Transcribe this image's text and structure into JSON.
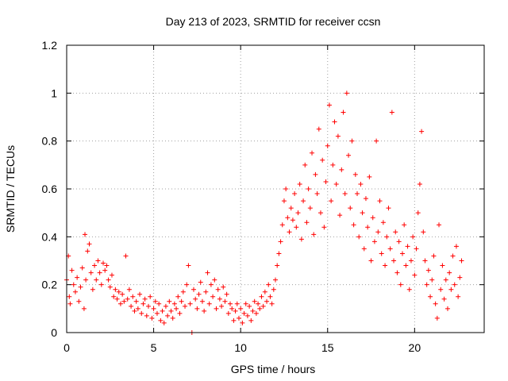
{
  "chart_data": {
    "type": "scatter",
    "title": "Day 213 of 2023, SRMTID for receiver ccsn",
    "xlabel": "GPS time / hours",
    "ylabel": "SRMTID / TECUs",
    "xlim": [
      0,
      24
    ],
    "ylim": [
      0,
      1.2
    ],
    "x_ticks": [
      0,
      5,
      10,
      15,
      20
    ],
    "y_ticks": [
      0,
      0.2,
      0.4,
      0.6,
      0.8,
      1,
      1.2
    ],
    "x_tick_labels": [
      "0",
      "5",
      "10",
      "15",
      "20"
    ],
    "y_tick_labels": [
      "0",
      "0.2",
      "0.4",
      "0.6",
      "0.8",
      "1",
      "1.2"
    ],
    "grid": true,
    "marker": "+",
    "series": [
      {
        "name": "SRMTID",
        "color": "#ff0000",
        "points": [
          [
            0.0,
            0.22
          ],
          [
            0.1,
            0.32
          ],
          [
            0.15,
            0.15
          ],
          [
            0.2,
            0.12
          ],
          [
            0.3,
            0.26
          ],
          [
            0.4,
            0.2
          ],
          [
            0.5,
            0.17
          ],
          [
            0.6,
            0.23
          ],
          [
            0.7,
            0.13
          ],
          [
            0.8,
            0.19
          ],
          [
            0.9,
            0.27
          ],
          [
            1.0,
            0.1
          ],
          [
            1.05,
            0.41
          ],
          [
            1.1,
            0.22
          ],
          [
            1.2,
            0.34
          ],
          [
            1.3,
            0.37
          ],
          [
            1.4,
            0.25
          ],
          [
            1.5,
            0.18
          ],
          [
            1.6,
            0.28
          ],
          [
            1.7,
            0.22
          ],
          [
            1.8,
            0.3
          ],
          [
            1.9,
            0.25
          ],
          [
            2.0,
            0.2
          ],
          [
            2.1,
            0.29
          ],
          [
            2.2,
            0.26
          ],
          [
            2.3,
            0.28
          ],
          [
            2.4,
            0.22
          ],
          [
            2.5,
            0.19
          ],
          [
            2.6,
            0.24
          ],
          [
            2.7,
            0.15
          ],
          [
            2.8,
            0.18
          ],
          [
            2.9,
            0.14
          ],
          [
            3.0,
            0.17
          ],
          [
            3.1,
            0.12
          ],
          [
            3.2,
            0.16
          ],
          [
            3.3,
            0.13
          ],
          [
            3.4,
            0.32
          ],
          [
            3.5,
            0.14
          ],
          [
            3.6,
            0.18
          ],
          [
            3.7,
            0.11
          ],
          [
            3.8,
            0.15
          ],
          [
            3.9,
            0.09
          ],
          [
            4.0,
            0.13
          ],
          [
            4.1,
            0.1
          ],
          [
            4.2,
            0.16
          ],
          [
            4.3,
            0.08
          ],
          [
            4.4,
            0.12
          ],
          [
            4.5,
            0.14
          ],
          [
            4.6,
            0.07
          ],
          [
            4.7,
            0.11
          ],
          [
            4.8,
            0.15
          ],
          [
            4.9,
            0.06
          ],
          [
            5.0,
            0.1
          ],
          [
            5.1,
            0.13
          ],
          [
            5.2,
            0.08
          ],
          [
            5.3,
            0.12
          ],
          [
            5.4,
            0.05
          ],
          [
            5.5,
            0.09
          ],
          [
            5.6,
            0.04
          ],
          [
            5.7,
            0.11
          ],
          [
            5.8,
            0.07
          ],
          [
            5.9,
            0.13
          ],
          [
            6.0,
            0.09
          ],
          [
            6.1,
            0.06
          ],
          [
            6.2,
            0.12
          ],
          [
            6.3,
            0.1
          ],
          [
            6.4,
            0.15
          ],
          [
            6.5,
            0.08
          ],
          [
            6.6,
            0.13
          ],
          [
            6.7,
            0.17
          ],
          [
            6.8,
            0.11
          ],
          [
            6.9,
            0.2
          ],
          [
            7.0,
            0.28
          ],
          [
            7.1,
            0.12
          ],
          [
            7.2,
            0.0
          ],
          [
            7.3,
            0.18
          ],
          [
            7.4,
            0.14
          ],
          [
            7.5,
            0.1
          ],
          [
            7.6,
            0.16
          ],
          [
            7.7,
            0.21
          ],
          [
            7.8,
            0.13
          ],
          [
            7.9,
            0.09
          ],
          [
            8.0,
            0.17
          ],
          [
            8.1,
            0.25
          ],
          [
            8.2,
            0.12
          ],
          [
            8.3,
            0.2
          ],
          [
            8.4,
            0.15
          ],
          [
            8.5,
            0.22
          ],
          [
            8.6,
            0.1
          ],
          [
            8.7,
            0.18
          ],
          [
            8.8,
            0.14
          ],
          [
            8.9,
            0.11
          ],
          [
            9.0,
            0.19
          ],
          [
            9.1,
            0.13
          ],
          [
            9.2,
            0.16
          ],
          [
            9.3,
            0.08
          ],
          [
            9.4,
            0.12
          ],
          [
            9.5,
            0.1
          ],
          [
            9.6,
            0.05
          ],
          [
            9.7,
            0.09
          ],
          [
            9.8,
            0.12
          ],
          [
            9.9,
            0.06
          ],
          [
            10.0,
            0.1
          ],
          [
            10.1,
            0.04
          ],
          [
            10.2,
            0.08
          ],
          [
            10.3,
            0.12
          ],
          [
            10.4,
            0.07
          ],
          [
            10.5,
            0.11
          ],
          [
            10.6,
            0.05
          ],
          [
            10.7,
            0.09
          ],
          [
            10.8,
            0.13
          ],
          [
            10.9,
            0.08
          ],
          [
            11.0,
            0.12
          ],
          [
            11.1,
            0.1
          ],
          [
            11.2,
            0.15
          ],
          [
            11.3,
            0.11
          ],
          [
            11.4,
            0.17
          ],
          [
            11.5,
            0.13
          ],
          [
            11.6,
            0.2
          ],
          [
            11.7,
            0.15
          ],
          [
            11.8,
            0.12
          ],
          [
            11.9,
            0.18
          ],
          [
            12.0,
            0.22
          ],
          [
            12.1,
            0.28
          ],
          [
            12.2,
            0.33
          ],
          [
            12.3,
            0.38
          ],
          [
            12.4,
            0.45
          ],
          [
            12.5,
            0.55
          ],
          [
            12.6,
            0.6
          ],
          [
            12.7,
            0.48
          ],
          [
            12.8,
            0.42
          ],
          [
            12.9,
            0.52
          ],
          [
            13.0,
            0.47
          ],
          [
            13.1,
            0.58
          ],
          [
            13.2,
            0.44
          ],
          [
            13.3,
            0.5
          ],
          [
            13.4,
            0.62
          ],
          [
            13.5,
            0.39
          ],
          [
            13.6,
            0.55
          ],
          [
            13.7,
            0.7
          ],
          [
            13.8,
            0.46
          ],
          [
            13.9,
            0.6
          ],
          [
            14.0,
            0.52
          ],
          [
            14.1,
            0.75
          ],
          [
            14.2,
            0.41
          ],
          [
            14.3,
            0.66
          ],
          [
            14.4,
            0.58
          ],
          [
            14.5,
            0.85
          ],
          [
            14.6,
            0.5
          ],
          [
            14.7,
            0.72
          ],
          [
            14.8,
            0.44
          ],
          [
            14.9,
            0.63
          ],
          [
            15.0,
            0.78
          ],
          [
            15.1,
            0.95
          ],
          [
            15.2,
            0.55
          ],
          [
            15.3,
            0.7
          ],
          [
            15.4,
            0.88
          ],
          [
            15.5,
            0.62
          ],
          [
            15.6,
            0.82
          ],
          [
            15.7,
            0.49
          ],
          [
            15.8,
            0.68
          ],
          [
            15.9,
            0.92
          ],
          [
            16.0,
            0.58
          ],
          [
            16.1,
            1.0
          ],
          [
            16.2,
            0.74
          ],
          [
            16.3,
            0.52
          ],
          [
            16.4,
            0.8
          ],
          [
            16.5,
            0.45
          ],
          [
            16.6,
            0.66
          ],
          [
            16.7,
            0.58
          ],
          [
            16.8,
            0.4
          ],
          [
            16.9,
            0.62
          ],
          [
            17.0,
            0.5
          ],
          [
            17.1,
            0.35
          ],
          [
            17.2,
            0.56
          ],
          [
            17.3,
            0.44
          ],
          [
            17.4,
            0.65
          ],
          [
            17.5,
            0.3
          ],
          [
            17.6,
            0.48
          ],
          [
            17.7,
            0.38
          ],
          [
            17.8,
            0.8
          ],
          [
            17.9,
            0.42
          ],
          [
            18.0,
            0.55
          ],
          [
            18.1,
            0.33
          ],
          [
            18.2,
            0.46
          ],
          [
            18.3,
            0.28
          ],
          [
            18.4,
            0.4
          ],
          [
            18.5,
            0.52
          ],
          [
            18.6,
            0.35
          ],
          [
            18.7,
            0.92
          ],
          [
            18.8,
            0.3
          ],
          [
            18.9,
            0.42
          ],
          [
            19.0,
            0.25
          ],
          [
            19.1,
            0.38
          ],
          [
            19.2,
            0.2
          ],
          [
            19.3,
            0.33
          ],
          [
            19.4,
            0.45
          ],
          [
            19.5,
            0.28
          ],
          [
            19.6,
            0.36
          ],
          [
            19.7,
            0.18
          ],
          [
            19.8,
            0.3
          ],
          [
            19.9,
            0.4
          ],
          [
            20.0,
            0.24
          ],
          [
            20.1,
            0.35
          ],
          [
            20.2,
            0.5
          ],
          [
            20.3,
            0.62
          ],
          [
            20.4,
            0.84
          ],
          [
            20.5,
            0.42
          ],
          [
            20.6,
            0.3
          ],
          [
            20.7,
            0.2
          ],
          [
            20.8,
            0.26
          ],
          [
            20.9,
            0.15
          ],
          [
            21.0,
            0.22
          ],
          [
            21.1,
            0.32
          ],
          [
            21.2,
            0.12
          ],
          [
            21.3,
            0.06
          ],
          [
            21.4,
            0.45
          ],
          [
            21.5,
            0.18
          ],
          [
            21.6,
            0.28
          ],
          [
            21.7,
            0.14
          ],
          [
            21.8,
            0.22
          ],
          [
            21.9,
            0.1
          ],
          [
            22.0,
            0.25
          ],
          [
            22.1,
            0.18
          ],
          [
            22.2,
            0.32
          ],
          [
            22.3,
            0.2
          ],
          [
            22.4,
            0.36
          ],
          [
            22.5,
            0.15
          ],
          [
            22.6,
            0.23
          ],
          [
            22.7,
            0.3
          ]
        ]
      }
    ]
  }
}
